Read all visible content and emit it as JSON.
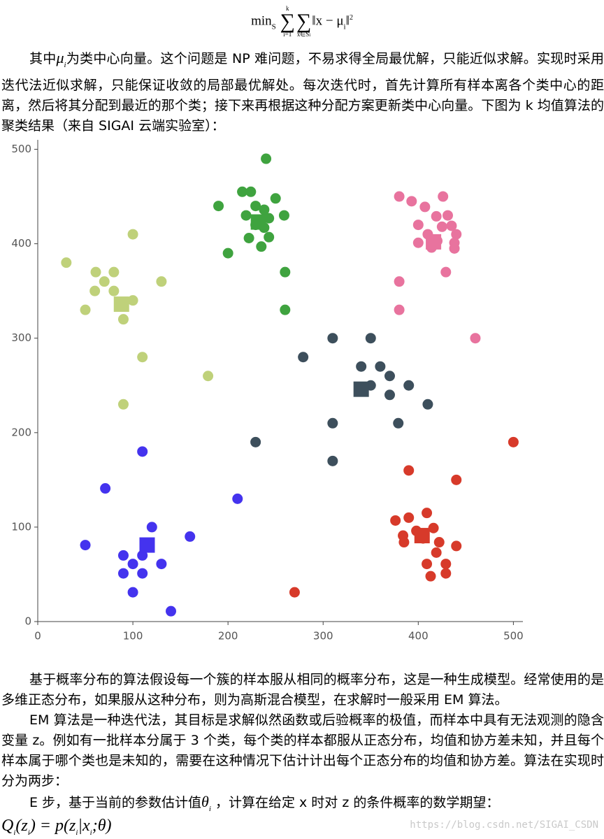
{
  "document": {
    "formula1": {
      "op": "min",
      "op_sub": "S",
      "sum1": "∑",
      "sum1_lower": "i=1",
      "sum1_upper": "k",
      "sum2": "∑",
      "sum2_lower": "x∈S",
      "sum2_lower_sub": "i",
      "body": "‖x − μ",
      "body_sub": "i",
      "body_end": "‖",
      "power": "2"
    },
    "p1": {
      "before": "其中",
      "math": "μ",
      "math_sub": "i",
      "after": "为类中心向量。这个问题是 NP 难问题，不易求得全局最优解，只能近似求解。实现时采用迭代法近似求解，只能保证收敛的局部最优解处。每次迭代时，首先计算所有样本离各个类中心的距离，然后将其分配到最近的那个类；接下来再根据这种分配方案更新类中心向量。下图为 k 均值算法的聚类结果（来自 SIGAI 云端实验室）："
    },
    "p2": "基于概率分布的算法假设每一个簇的样本服从相同的概率分布，这是一种生成模型。经常使用的是多维正态分布，如果服从这种分布，则为高斯混合模型，在求解时一般采用 EM 算法。",
    "p3": "EM 算法是一种迭代法，其目标是求解似然函数或后验概率的极值，而样本中具有无法观测的隐含变量 z。例如有一批样本分属于 3 个类，每个类的样本都服从正态分布，均值和协方差未知，并且每个样本属于哪个类也是未知的，需要在这种情况下估计计出每个正态分布的均值和协方差。算法在实现时分为两步：",
    "p4": {
      "before": "E 步，基于当前的参数估计值",
      "math": "θ",
      "math_sub": "i",
      "after": " ，计算在给定 x 时对 z 的条件概率的数学期望："
    },
    "formula2": {
      "lhs": "Q",
      "lhs_sub": "i",
      "arg": "(z",
      "arg_sub": "i",
      "mid": ") = p(z",
      "mid_sub": "i",
      "cond": "|x",
      "cond_sub": "i",
      "end": ";θ)"
    },
    "watermark": "https://blog.csdn.net/SIGAI_CSDN"
  },
  "chart_data": {
    "type": "scatter",
    "xlim": [
      0,
      510
    ],
    "ylim": [
      0,
      510
    ],
    "xticks": [
      0,
      100,
      200,
      300,
      400,
      500
    ],
    "yticks": [
      0,
      100,
      200,
      300,
      400,
      500
    ],
    "grid": false,
    "series": [
      {
        "color": "#3fa33f",
        "marker": "circle",
        "x": [
          240,
          215,
          224,
          190,
          250,
          229,
          238,
          219,
          243,
          259,
          229,
          238,
          222,
          243,
          235,
          200,
          260,
          260
        ],
        "y": [
          490,
          455,
          455,
          440,
          448,
          440,
          436,
          430,
          427,
          430,
          420,
          417,
          406,
          407,
          397,
          390,
          370,
          330
        ]
      },
      {
        "color": "#e8739e",
        "marker": "circle",
        "x": [
          380,
          393,
          426,
          407,
          431,
          419,
          400,
          425,
          435,
          410,
          440,
          420,
          400,
          438,
          414,
          438,
          429,
          380,
          380,
          460
        ],
        "y": [
          450,
          445,
          450,
          439,
          430,
          429,
          420,
          418,
          419,
          410,
          410,
          403,
          401,
          401,
          396,
          395,
          370,
          360,
          330,
          300
        ]
      },
      {
        "color": "#bfd17a",
        "marker": "circle",
        "x": [
          100,
          30,
          61,
          80,
          70,
          130,
          60,
          80,
          100,
          50,
          90,
          110,
          179,
          90
        ],
        "y": [
          410,
          380,
          370,
          370,
          360,
          360,
          350,
          350,
          340,
          330,
          320,
          280,
          260,
          230
        ]
      },
      {
        "color": "#3d4f5c",
        "marker": "circle",
        "x": [
          310,
          350,
          279,
          340,
          360,
          370,
          350,
          390,
          370,
          410,
          310,
          379,
          229,
          310
        ],
        "y": [
          300,
          300,
          280,
          270,
          270,
          260,
          250,
          250,
          240,
          230,
          210,
          210,
          190,
          170
        ]
      },
      {
        "color": "#d73a2a",
        "marker": "circle",
        "x": [
          500,
          390,
          440,
          409,
          376,
          390,
          416,
          398,
          384,
          405,
          422,
          385,
          440,
          419,
          429,
          409,
          429,
          413,
          270
        ],
        "y": [
          190,
          160,
          150,
          115,
          107,
          110,
          99,
          96,
          91,
          88,
          84,
          84,
          80,
          73,
          61,
          61,
          51,
          48,
          31
        ]
      },
      {
        "color": "#4433ee",
        "marker": "circle",
        "x": [
          110,
          71,
          210,
          120,
          160,
          50,
          90,
          110,
          100,
          130,
          90,
          110,
          100,
          140
        ],
        "y": [
          180,
          141,
          130,
          100,
          90,
          81,
          70,
          70,
          61,
          61,
          51,
          51,
          31,
          11
        ]
      },
      {
        "color": "#3fa33f",
        "marker": "square",
        "x": [
          232
        ],
        "y": [
          423
        ]
      },
      {
        "color": "#e8739e",
        "marker": "square",
        "x": [
          416
        ],
        "y": [
          402
        ]
      },
      {
        "color": "#bfd17a",
        "marker": "square",
        "x": [
          88
        ],
        "y": [
          336
        ]
      },
      {
        "color": "#3d4f5c",
        "marker": "square",
        "x": [
          340
        ],
        "y": [
          246
        ]
      },
      {
        "color": "#d73a2a",
        "marker": "square",
        "x": [
          404
        ],
        "y": [
          91
        ]
      },
      {
        "color": "#4433ee",
        "marker": "square",
        "x": [
          115
        ],
        "y": [
          81
        ]
      }
    ]
  }
}
